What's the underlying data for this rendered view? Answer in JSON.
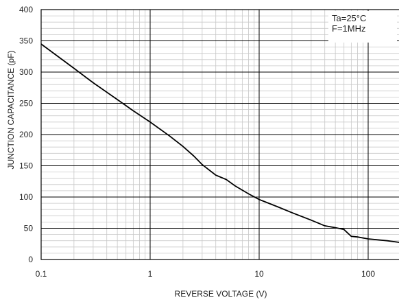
{
  "chart_data": {
    "type": "line",
    "x_scale": "log",
    "xlabel": "REVERSE VOLTAGE (V)",
    "ylabel": "JUNCTION CAPACITANCE (pF)",
    "xlim": [
      0.1,
      300
    ],
    "ylim": [
      0,
      400
    ],
    "grid": true,
    "x_ticks": [
      {
        "value": 0.1,
        "label": "0.1"
      },
      {
        "value": 1,
        "label": "1"
      },
      {
        "value": 10,
        "label": "10"
      },
      {
        "value": 100,
        "label": "100"
      }
    ],
    "y_ticks": [
      {
        "value": 0,
        "label": "0"
      },
      {
        "value": 50,
        "label": "50"
      },
      {
        "value": 100,
        "label": "100"
      },
      {
        "value": 150,
        "label": "150"
      },
      {
        "value": 200,
        "label": "200"
      },
      {
        "value": 250,
        "label": "250"
      },
      {
        "value": 300,
        "label": "300"
      },
      {
        "value": 350,
        "label": "350"
      },
      {
        "value": 400,
        "label": "400"
      }
    ],
    "annotations": [
      "Ta=25°C",
      "F=1MHz"
    ],
    "annotation_position": "top-right",
    "series": [
      {
        "x": [
          0.1,
          0.2,
          0.3,
          0.5,
          0.7,
          1,
          1.5,
          2,
          2.5,
          3,
          4,
          5,
          6,
          8,
          10,
          15,
          20,
          30,
          40,
          50,
          60,
          70,
          80,
          100,
          150,
          200,
          300
        ],
        "y": [
          345,
          306,
          283,
          256,
          238,
          220,
          198,
          181,
          166,
          152,
          135,
          128,
          118,
          105,
          96,
          84,
          75,
          63,
          54,
          51,
          48,
          37,
          36,
          33,
          30,
          27,
          25
        ]
      }
    ],
    "line_color": "#000000"
  }
}
